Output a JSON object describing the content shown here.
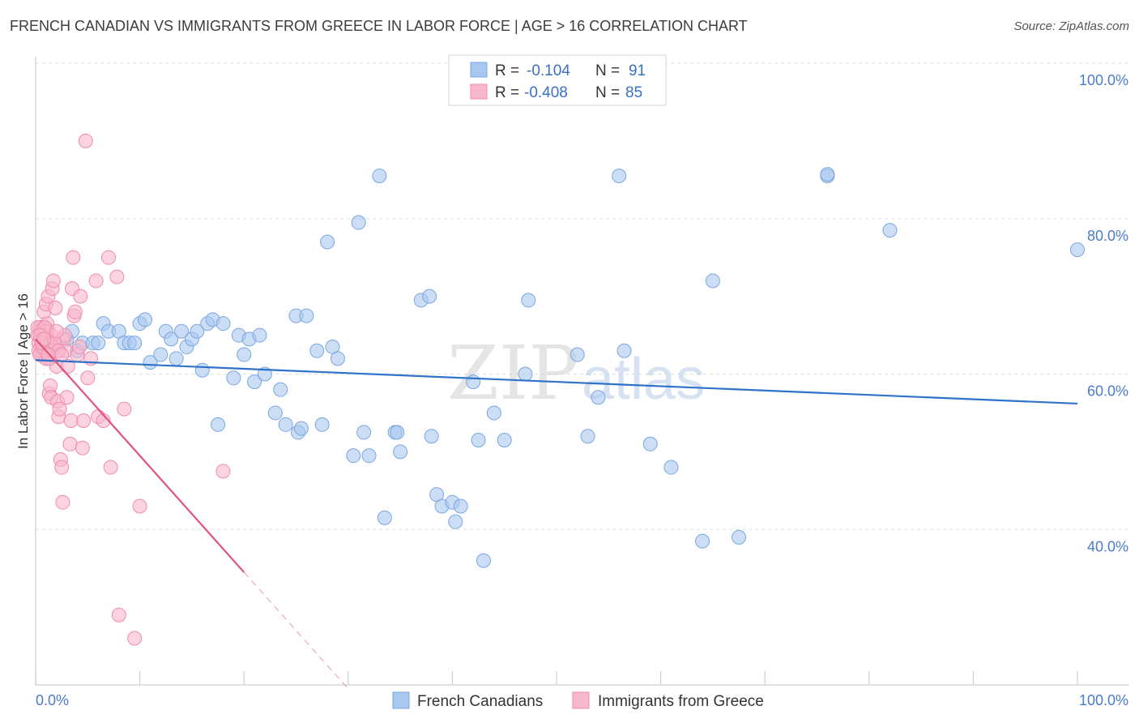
{
  "header": {
    "title": "FRENCH CANADIAN VS IMMIGRANTS FROM GREECE IN LABOR FORCE | AGE > 16 CORRELATION CHART",
    "source": "Source: ZipAtlas.com"
  },
  "watermark": {
    "zip": "ZIP",
    "atlas": "atlas"
  },
  "chart_data": {
    "type": "scatter",
    "title": "FRENCH CANADIAN VS IMMIGRANTS FROM GREECE IN LABOR FORCE | AGE > 16 CORRELATION CHART",
    "xlabel": "",
    "ylabel": "In Labor Force | Age > 16",
    "xlim": [
      0,
      100
    ],
    "ylim": [
      20,
      100
    ],
    "x_tick_labels": {
      "left": "0.0%",
      "right": "100.0%"
    },
    "y_ticks": [
      {
        "value": 100,
        "label": "100.0%"
      },
      {
        "value": 80,
        "label": "80.0%"
      },
      {
        "value": 60,
        "label": "60.0%"
      },
      {
        "value": 40,
        "label": "40.0%"
      }
    ],
    "grid": true,
    "legend_position": "top-center",
    "legend": [
      {
        "r_label": "R =",
        "r_value": "-0.104",
        "n_label": "N =",
        "n_value": "91"
      },
      {
        "r_label": "R =",
        "r_value": "-0.408",
        "n_label": "N =",
        "n_value": "85"
      }
    ],
    "series": [
      {
        "name": "French Canadians",
        "color": "#a9c8f0",
        "edge": "#7aa7e0",
        "line_color": "#2f72c9",
        "trend": {
          "x0": 0,
          "y0": 61.8,
          "x1": 100,
          "y1": 56.2
        },
        "points": [
          [
            1,
            62.5
          ],
          [
            1.5,
            63.5
          ],
          [
            2,
            63
          ],
          [
            3,
            64.5
          ],
          [
            3.5,
            65.5
          ],
          [
            4,
            63
          ],
          [
            4.5,
            64
          ],
          [
            5.5,
            64
          ],
          [
            6,
            64
          ],
          [
            6.5,
            66.5
          ],
          [
            7,
            65.5
          ],
          [
            8,
            65.5
          ],
          [
            8.5,
            64
          ],
          [
            9,
            64
          ],
          [
            9.5,
            64
          ],
          [
            10,
            66.5
          ],
          [
            10.5,
            67
          ],
          [
            11,
            61.5
          ],
          [
            12,
            62.5
          ],
          [
            12.5,
            65.5
          ],
          [
            13,
            64.5
          ],
          [
            13.5,
            62
          ],
          [
            14,
            65.5
          ],
          [
            14.5,
            63.5
          ],
          [
            15,
            64.5
          ],
          [
            15.5,
            65.5
          ],
          [
            16,
            60.5
          ],
          [
            16.5,
            66.5
          ],
          [
            17,
            67
          ],
          [
            17.5,
            53.5
          ],
          [
            18,
            66.5
          ],
          [
            19,
            59.5
          ],
          [
            19.5,
            65
          ],
          [
            20,
            62.5
          ],
          [
            20.5,
            64.5
          ],
          [
            21,
            59
          ],
          [
            21.5,
            65
          ],
          [
            22,
            60
          ],
          [
            23,
            55
          ],
          [
            23.5,
            58
          ],
          [
            24,
            53.5
          ],
          [
            25,
            67.5
          ],
          [
            25.2,
            52.5
          ],
          [
            25.5,
            53
          ],
          [
            26,
            67.5
          ],
          [
            27,
            63
          ],
          [
            27.5,
            53.5
          ],
          [
            28,
            77
          ],
          [
            28.5,
            63.5
          ],
          [
            29,
            62
          ],
          [
            30.5,
            49.5
          ],
          [
            31,
            79.5
          ],
          [
            31.5,
            52.5
          ],
          [
            32,
            49.5
          ],
          [
            33,
            85.5
          ],
          [
            33.5,
            41.5
          ],
          [
            34.5,
            52.5
          ],
          [
            34.7,
            52.5
          ],
          [
            35,
            50
          ],
          [
            37,
            69.5
          ],
          [
            37.8,
            70
          ],
          [
            38,
            52
          ],
          [
            38.5,
            44.5
          ],
          [
            39,
            43
          ],
          [
            40,
            43.5
          ],
          [
            40.3,
            41
          ],
          [
            40.8,
            43
          ],
          [
            42,
            59
          ],
          [
            42.5,
            51.5
          ],
          [
            43,
            36
          ],
          [
            44,
            55
          ],
          [
            45,
            51.5
          ],
          [
            47,
            60
          ],
          [
            47.3,
            69.5
          ],
          [
            52,
            62.5
          ],
          [
            53,
            52
          ],
          [
            54,
            57
          ],
          [
            56,
            85.5
          ],
          [
            56.5,
            63
          ],
          [
            59,
            51
          ],
          [
            61,
            48
          ],
          [
            64,
            38.5
          ],
          [
            65,
            72
          ],
          [
            67.5,
            39
          ],
          [
            76,
            85.5
          ],
          [
            76,
            85.7
          ],
          [
            82,
            78.5
          ],
          [
            100,
            76
          ]
        ]
      },
      {
        "name": "Immigrants from Greece",
        "color": "#f8b8cc",
        "edge": "#ef8cab",
        "line_color": "#e0557f",
        "trend": {
          "x0": 0,
          "y0": 64.5,
          "x1": 20,
          "y1": 34.5
        },
        "trend_dashed": {
          "x0": 20,
          "y0": 34.5,
          "x1": 30,
          "y1": 19.5
        },
        "points": [
          [
            0.2,
            65
          ],
          [
            0.3,
            64
          ],
          [
            0.4,
            66
          ],
          [
            0.5,
            63.5
          ],
          [
            0.5,
            65.5
          ],
          [
            0.6,
            62.5
          ],
          [
            0.7,
            64.5
          ],
          [
            0.7,
            66
          ],
          [
            0.8,
            63
          ],
          [
            0.9,
            65
          ],
          [
            1,
            64
          ],
          [
            1,
            62
          ],
          [
            1.1,
            66.5
          ],
          [
            1.2,
            63.5
          ],
          [
            1.2,
            65.5
          ],
          [
            1.3,
            64
          ],
          [
            1.4,
            62.5
          ],
          [
            1.5,
            65
          ],
          [
            0.8,
            68
          ],
          [
            1,
            69
          ],
          [
            1.2,
            70
          ],
          [
            1.3,
            57.5
          ],
          [
            1.4,
            58.5
          ],
          [
            1.5,
            57
          ],
          [
            1.6,
            71
          ],
          [
            1.7,
            72
          ],
          [
            1.8,
            63.5
          ],
          [
            1.9,
            68.5
          ],
          [
            2,
            61
          ],
          [
            2.1,
            56.5
          ],
          [
            2.2,
            54.5
          ],
          [
            2.3,
            55.5
          ],
          [
            2.4,
            49
          ],
          [
            2.5,
            48
          ],
          [
            2.6,
            43.5
          ],
          [
            2.7,
            64.5
          ],
          [
            2.8,
            65
          ],
          [
            2.9,
            63
          ],
          [
            3,
            57
          ],
          [
            3.1,
            61
          ],
          [
            3.3,
            51
          ],
          [
            3.4,
            54
          ],
          [
            3.5,
            71
          ],
          [
            3.6,
            75
          ],
          [
            3.7,
            67.5
          ],
          [
            3.8,
            68
          ],
          [
            4,
            62.5
          ],
          [
            4.2,
            63.5
          ],
          [
            4.3,
            70
          ],
          [
            4.5,
            50.5
          ],
          [
            4.6,
            54
          ],
          [
            4.8,
            90
          ],
          [
            5,
            59.5
          ],
          [
            5.3,
            62
          ],
          [
            5.8,
            72
          ],
          [
            6,
            54.5
          ],
          [
            6.5,
            54
          ],
          [
            7,
            75
          ],
          [
            7.2,
            48
          ],
          [
            7.8,
            72.5
          ],
          [
            8,
            29
          ],
          [
            8.5,
            55.5
          ],
          [
            10,
            43
          ],
          [
            9.5,
            26
          ],
          [
            18,
            47.5
          ],
          [
            0.3,
            63
          ],
          [
            0.5,
            64.5
          ],
          [
            0.6,
            65.5
          ],
          [
            0.9,
            63
          ],
          [
            1.1,
            64.5
          ],
          [
            0.4,
            62.5
          ],
          [
            0.7,
            63.5
          ],
          [
            1,
            65.5
          ],
          [
            1.3,
            62
          ],
          [
            0.2,
            66
          ],
          [
            0.6,
            64
          ],
          [
            0.9,
            66
          ],
          [
            1.5,
            63
          ],
          [
            1.8,
            64
          ],
          [
            2,
            65.5
          ],
          [
            2.2,
            63
          ],
          [
            2.5,
            62.5
          ],
          [
            0.4,
            65
          ],
          [
            0.8,
            64.5
          ],
          [
            1.2,
            62.5
          ]
        ]
      }
    ]
  }
}
